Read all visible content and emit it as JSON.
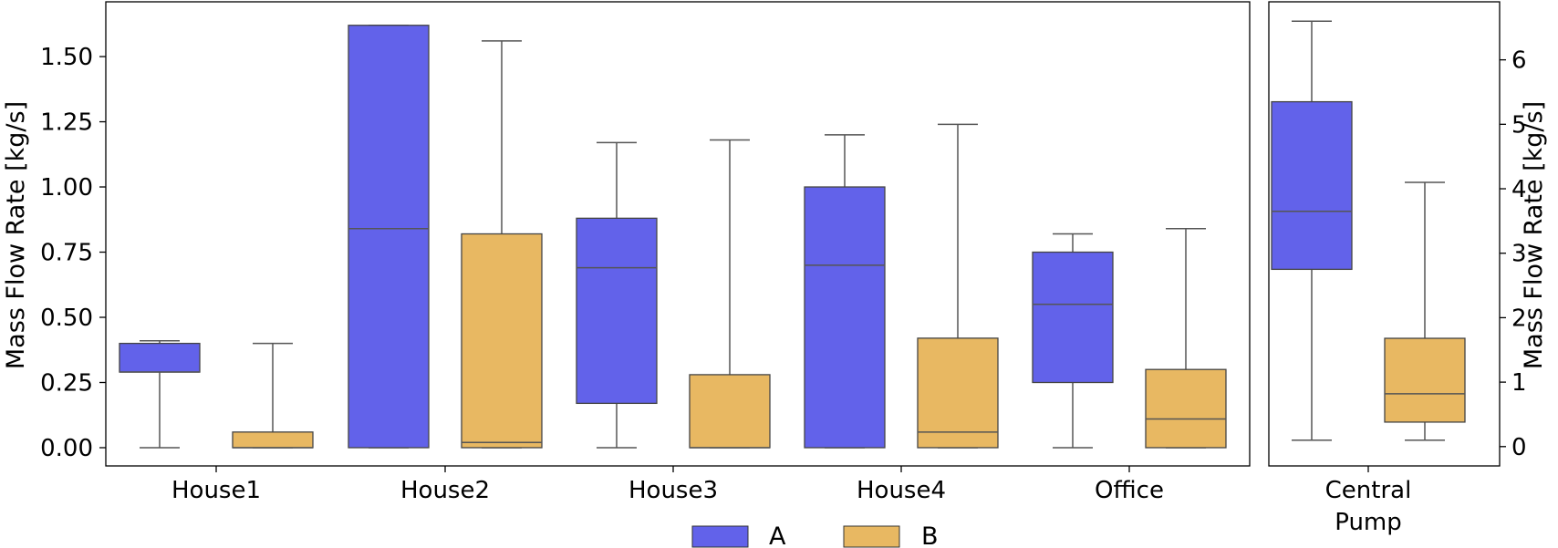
{
  "chart_data": [
    {
      "type": "box",
      "ylabel": "Mass Flow Rate [kg/s]",
      "ylim": [
        -0.07,
        1.71
      ],
      "y_ticks": [
        "0.00",
        "0.25",
        "0.50",
        "0.75",
        "1.00",
        "1.25",
        "1.50"
      ],
      "categories": [
        "House1",
        "House2",
        "House3",
        "House4",
        "Office"
      ],
      "series": [
        {
          "name": "A",
          "color": "#6262EA",
          "boxes": [
            {
              "min": 0.0,
              "q1": 0.29,
              "median": 0.29,
              "q3": 0.4,
              "max": 0.41
            },
            {
              "min": 0.0,
              "q1": 0.0,
              "median": 0.84,
              "q3": 1.62,
              "max": 1.62
            },
            {
              "min": 0.0,
              "q1": 0.17,
              "median": 0.69,
              "q3": 0.88,
              "max": 1.17
            },
            {
              "min": 0.0,
              "q1": 0.0,
              "median": 0.7,
              "q3": 1.0,
              "max": 1.2
            },
            {
              "min": 0.0,
              "q1": 0.25,
              "median": 0.55,
              "q3": 0.75,
              "max": 0.82
            }
          ]
        },
        {
          "name": "B",
          "color": "#E8B862",
          "boxes": [
            {
              "min": 0.0,
              "q1": 0.0,
              "median": 0.0,
              "q3": 0.06,
              "max": 0.4
            },
            {
              "min": 0.0,
              "q1": 0.0,
              "median": 0.02,
              "q3": 0.82,
              "max": 1.56
            },
            {
              "min": 0.0,
              "q1": 0.0,
              "median": 0.0,
              "q3": 0.28,
              "max": 1.18
            },
            {
              "min": 0.0,
              "q1": 0.0,
              "median": 0.06,
              "q3": 0.42,
              "max": 1.24
            },
            {
              "min": 0.0,
              "q1": 0.0,
              "median": 0.11,
              "q3": 0.3,
              "max": 0.84
            }
          ]
        }
      ]
    },
    {
      "type": "box",
      "ylabel": "Mass Flow Rate [kg/s]",
      "ylabel_side": "right",
      "ylim": [
        -0.3,
        6.9
      ],
      "y_ticks": [
        "0",
        "1",
        "2",
        "3",
        "4",
        "5",
        "6"
      ],
      "category_lines": [
        "Central",
        "Pump"
      ],
      "series": [
        {
          "name": "A",
          "color": "#6262EA",
          "boxes": [
            {
              "min": 0.1,
              "q1": 2.75,
              "median": 3.65,
              "q3": 5.35,
              "max": 6.6
            }
          ]
        },
        {
          "name": "B",
          "color": "#E8B862",
          "boxes": [
            {
              "min": 0.1,
              "q1": 0.38,
              "median": 0.82,
              "q3": 1.68,
              "max": 4.1
            }
          ]
        }
      ]
    }
  ],
  "legend": {
    "position": "bottom-center",
    "items": [
      {
        "label": "A",
        "color": "#6262EA"
      },
      {
        "label": "B",
        "color": "#E8B862"
      }
    ]
  }
}
